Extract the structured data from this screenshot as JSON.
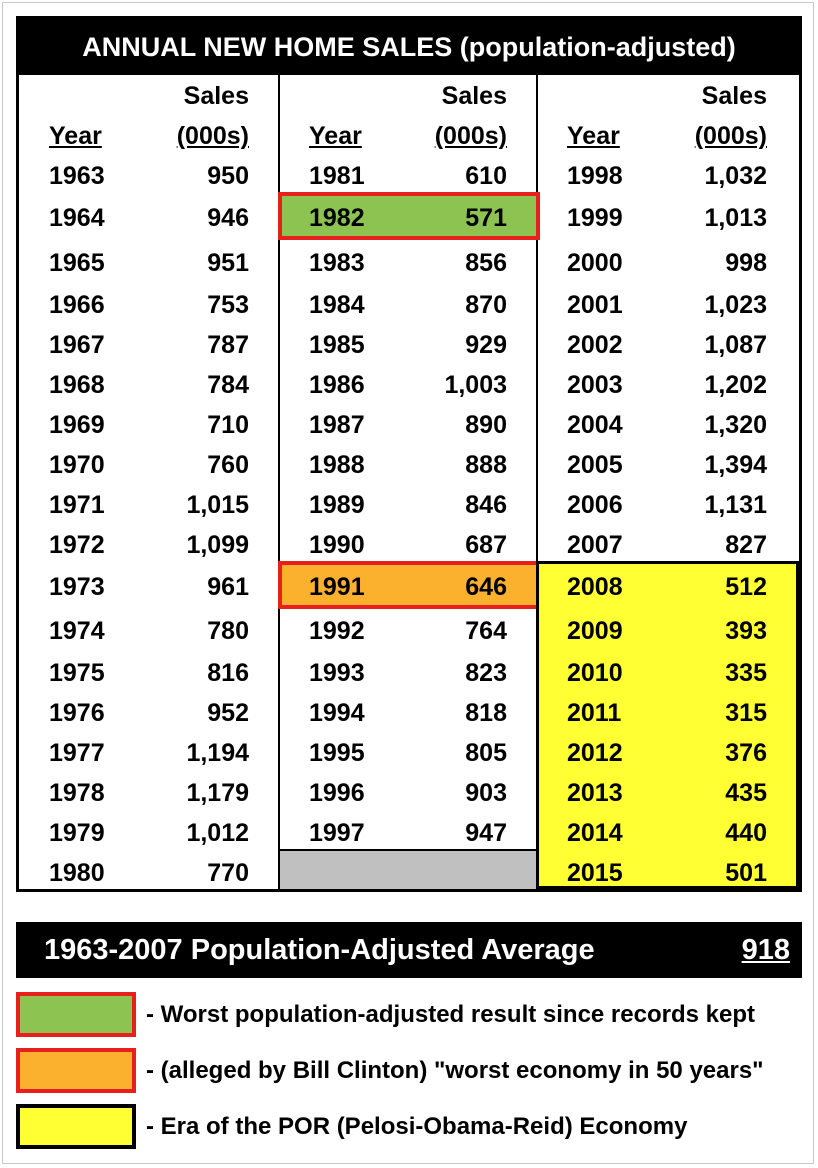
{
  "title": "ANNUAL NEW HOME SALES (population-adjusted)",
  "header": {
    "sales": "Sales",
    "year": "Year",
    "units": "(000s)"
  },
  "columns": [
    [
      [
        "1963",
        "950"
      ],
      [
        "1964",
        "946"
      ],
      [
        "1965",
        "951"
      ],
      [
        "1966",
        "753"
      ],
      [
        "1967",
        "787"
      ],
      [
        "1968",
        "784"
      ],
      [
        "1969",
        "710"
      ],
      [
        "1970",
        "760"
      ],
      [
        "1971",
        "1,015"
      ],
      [
        "1972",
        "1,099"
      ],
      [
        "1973",
        "961"
      ],
      [
        "1974",
        "780"
      ],
      [
        "1975",
        "816"
      ],
      [
        "1976",
        "952"
      ],
      [
        "1977",
        "1,194"
      ],
      [
        "1978",
        "1,179"
      ],
      [
        "1979",
        "1,012"
      ],
      [
        "1980",
        "770"
      ]
    ],
    [
      [
        "1981",
        "610"
      ],
      [
        "1982",
        "571"
      ],
      [
        "1983",
        "856"
      ],
      [
        "1984",
        "870"
      ],
      [
        "1985",
        "929"
      ],
      [
        "1986",
        "1,003"
      ],
      [
        "1987",
        "890"
      ],
      [
        "1988",
        "888"
      ],
      [
        "1989",
        "846"
      ],
      [
        "1990",
        "687"
      ],
      [
        "1991",
        "646"
      ],
      [
        "1992",
        "764"
      ],
      [
        "1993",
        "823"
      ],
      [
        "1994",
        "818"
      ],
      [
        "1995",
        "805"
      ],
      [
        "1996",
        "903"
      ],
      [
        "1997",
        "947"
      ]
    ],
    [
      [
        "1998",
        "1,032"
      ],
      [
        "1999",
        "1,013"
      ],
      [
        "2000",
        "998"
      ],
      [
        "2001",
        "1,023"
      ],
      [
        "2002",
        "1,087"
      ],
      [
        "2003",
        "1,202"
      ],
      [
        "2004",
        "1,320"
      ],
      [
        "2005",
        "1,394"
      ],
      [
        "2006",
        "1,131"
      ],
      [
        "2007",
        "827"
      ],
      [
        "2008",
        "512"
      ],
      [
        "2009",
        "393"
      ],
      [
        "2010",
        "335"
      ],
      [
        "2011",
        "315"
      ],
      [
        "2012",
        "376"
      ],
      [
        "2013",
        "435"
      ],
      [
        "2014",
        "440"
      ],
      [
        "2015",
        "501"
      ]
    ]
  ],
  "average": {
    "label": "1963-2007 Population-Adjusted Average",
    "value": "918"
  },
  "legend": [
    {
      "color": "#8dc451",
      "border": "#e8201d",
      "text": "- Worst population-adjusted result since records kept"
    },
    {
      "color": "#fbb12e",
      "border": "#e8201d",
      "text": "- (alleged by Bill Clinton) \"worst economy in 50 years\""
    },
    {
      "color": "#ffff33",
      "border": "#000000",
      "text": "- Era of the POR (Pelosi-Obama-Reid) Economy"
    }
  ],
  "colors": {
    "green": "#8dc451",
    "orange": "#fbb12e",
    "yellow": "#ffff33",
    "red": "#e8201d",
    "gray": "#c0c0c0"
  }
}
